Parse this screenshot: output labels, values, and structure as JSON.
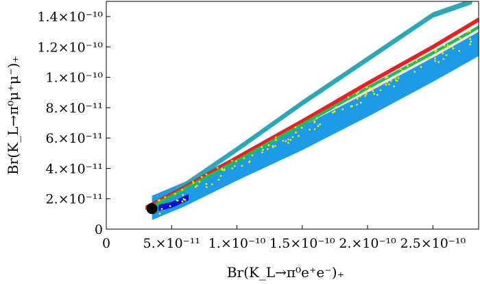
{
  "chart_data": {
    "type": "scatter",
    "xlabel": "Br(K_L→π⁰e⁺e⁻)₊",
    "ylabel": "Br(K_L→π⁰μ⁺μ⁻)₊",
    "xlim": [
      0,
      2.85e-10
    ],
    "ylim": [
      0,
      1.5e-10
    ],
    "x_ticks": [
      {
        "value": 0,
        "label": "0"
      },
      {
        "value": 5e-11,
        "label": "5.×10⁻¹¹"
      },
      {
        "value": 1e-10,
        "label": "1.×10⁻¹⁰"
      },
      {
        "value": 1.5e-10,
        "label": "1.5×10⁻¹⁰"
      },
      {
        "value": 2e-10,
        "label": "2.×10⁻¹⁰"
      },
      {
        "value": 2.5e-10,
        "label": "2.5×10⁻¹⁰"
      }
    ],
    "y_ticks": [
      {
        "value": 0,
        "label": "0"
      },
      {
        "value": 2e-11,
        "label": "2.×10⁻¹¹"
      },
      {
        "value": 4e-11,
        "label": "4.×10⁻¹¹"
      },
      {
        "value": 6e-11,
        "label": "6.×10⁻¹¹"
      },
      {
        "value": 8e-11,
        "label": "8.×10⁻¹¹"
      },
      {
        "value": 1e-10,
        "label": "1.×10⁻¹⁰"
      },
      {
        "value": 1.2e-10,
        "label": "1.2×10⁻¹⁰"
      },
      {
        "value": 1.4e-10,
        "label": "1.4×10⁻¹⁰"
      }
    ],
    "grid": false,
    "colors": {
      "light_blue": "#1e9be8",
      "teal": "#2aa8b8",
      "red": "#ee1c24",
      "green": "#22bb55",
      "yellow": "#e8f000",
      "dark_blue": "#1010cc",
      "marker": "#000000"
    },
    "bands": [
      {
        "color_key": "light_blue",
        "points": [
          [
            3.5e-11,
            1.4e-11
          ],
          [
            6e-11,
            2.3e-11
          ],
          [
            1e-10,
            4e-11
          ],
          [
            1.5e-10,
            6e-11
          ],
          [
            2e-10,
            8.2e-11
          ],
          [
            2.5e-10,
            1.05e-10
          ],
          [
            2.85e-10,
            1.22e-10
          ]
        ],
        "halfwidth": 8e-12
      },
      {
        "color_key": "teal",
        "points": [
          [
            3.5e-11,
            1.5e-11
          ],
          [
            6e-11,
            2.9e-11
          ],
          [
            1e-10,
            5.25e-11
          ],
          [
            1.5e-10,
            8.3e-11
          ],
          [
            2e-10,
            1.12e-10
          ],
          [
            2.5e-10,
            1.41e-10
          ],
          [
            2.8e-10,
            1.5e-10
          ]
        ],
        "halfwidth": 1.8e-12
      },
      {
        "color_key": "red",
        "points": [
          [
            3e-11,
            1.4e-11
          ],
          [
            6e-11,
            2.75e-11
          ],
          [
            1e-10,
            4.7e-11
          ],
          [
            1.5e-10,
            7.1e-11
          ],
          [
            2e-10,
            9.6e-11
          ],
          [
            2.5e-10,
            1.2e-10
          ],
          [
            2.85e-10,
            1.38e-10
          ]
        ],
        "halfwidth": 1.5e-12
      },
      {
        "color_key": "green",
        "points": [
          [
            3.5e-11,
            1.5e-11
          ],
          [
            1e-10,
            4.5e-11
          ],
          [
            1.5e-10,
            6.9e-11
          ],
          [
            2e-10,
            9.3e-11
          ],
          [
            2.5e-10,
            1.16e-10
          ],
          [
            2.85e-10,
            1.33e-10
          ]
        ],
        "halfwidth": 1.2e-12
      },
      {
        "color_key": "dark_blue",
        "points": [
          [
            4e-11,
            1.4e-11
          ],
          [
            5e-11,
            1.6e-11
          ],
          [
            6.3e-11,
            2.1e-11
          ]
        ],
        "halfwidth": 2e-12
      }
    ],
    "yellow_points": {
      "x_range": [
        4e-11,
        2.8e-10
      ],
      "center_slope": 0.4667,
      "center_offset": -4e-12,
      "spread": 5e-12
    },
    "marker_point": {
      "x": 3.5e-11,
      "y": 1.35e-11
    }
  }
}
